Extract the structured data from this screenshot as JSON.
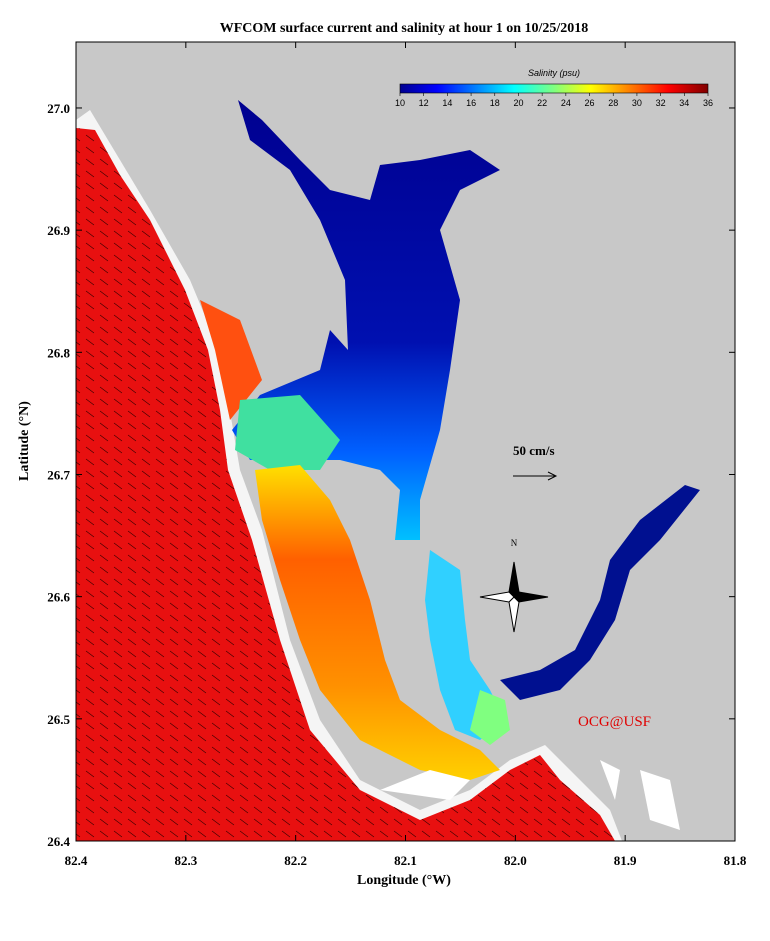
{
  "title": "WFCOM surface current and salinity at hour 1 on 10/25/2018",
  "x_axis": {
    "label": "Longitude (°W)",
    "xlim": [
      82.4,
      81.8
    ],
    "ticks": [
      82.4,
      82.3,
      82.2,
      82.1,
      {
        "value": 82,
        "label": "82.0"
      },
      81.9,
      81.8
    ]
  },
  "y_axis": {
    "label": "Latitude (°N)",
    "ylim": [
      26.4,
      27.054
    ],
    "ticks": [
      26.4,
      26.5,
      26.6,
      26.7,
      26.8,
      26.9,
      {
        "value": 27,
        "label": "27.0"
      }
    ]
  },
  "colorbar": {
    "label": "Salinity (psu)",
    "ticks": [
      10,
      12,
      14,
      16,
      18,
      20,
      22,
      24,
      26,
      28,
      30,
      32,
      34,
      36
    ]
  },
  "scale_arrow": "50 cm/s",
  "compass": "N",
  "credit": "OCG@USF"
}
